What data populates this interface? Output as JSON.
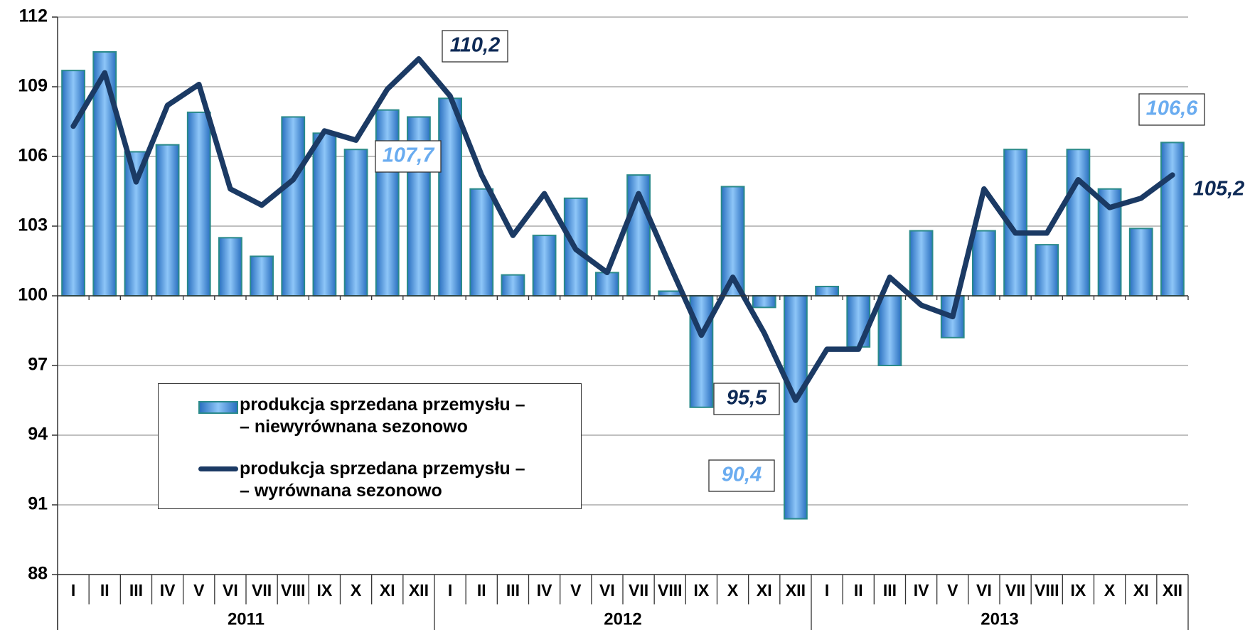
{
  "chart_data": {
    "type": "bar+line",
    "categories": [
      "I",
      "II",
      "III",
      "IV",
      "V",
      "VI",
      "VII",
      "VIII",
      "IX",
      "X",
      "XI",
      "XII",
      "I",
      "II",
      "III",
      "IV",
      "V",
      "VI",
      "VII",
      "VIII",
      "IX",
      "X",
      "XI",
      "XII",
      "I",
      "II",
      "III",
      "IV",
      "V",
      "VI",
      "VII",
      "VIII",
      "IX",
      "X",
      "XI",
      "XII"
    ],
    "groups": [
      "2011",
      "2012",
      "2013"
    ],
    "ylim": [
      88,
      112
    ],
    "yticks": [
      88,
      91,
      94,
      97,
      100,
      103,
      106,
      109,
      112
    ],
    "grid": true,
    "xaxis_crosses": 100,
    "series": [
      {
        "name": "produkcja sprzedana przemysłu –\n– niewyrównana sezonowo",
        "type": "bar",
        "color": "#4a9de8",
        "values": [
          109.7,
          110.5,
          106.2,
          106.5,
          107.9,
          102.5,
          101.7,
          107.7,
          107.0,
          106.3,
          108.0,
          107.7,
          108.5,
          104.6,
          100.9,
          102.6,
          104.2,
          101.0,
          105.2,
          100.2,
          95.2,
          104.7,
          99.5,
          90.4,
          100.4,
          97.8,
          97.0,
          102.8,
          98.2,
          102.8,
          106.3,
          102.2,
          106.3,
          104.6,
          102.9,
          106.6
        ]
      },
      {
        "name": "produkcja sprzedana przemysłu –\n– wyrównana sezonowo",
        "type": "line",
        "color": "#1b3a64",
        "values": [
          107.3,
          109.6,
          104.9,
          108.2,
          109.1,
          104.6,
          103.9,
          105.0,
          107.1,
          106.7,
          108.9,
          110.2,
          108.6,
          105.2,
          102.6,
          104.4,
          102.0,
          101.0,
          104.4,
          101.3,
          98.3,
          100.8,
          98.4,
          95.5,
          97.7,
          97.7,
          100.8,
          99.6,
          99.1,
          104.6,
          102.7,
          102.7,
          105.0,
          103.8,
          104.2,
          105.2
        ]
      }
    ],
    "annotations": [
      {
        "text": "110,2",
        "color": "#0e2a56"
      },
      {
        "text": "107,7",
        "color": "#6aacf0"
      },
      {
        "text": "106,6",
        "color": "#6aacf0"
      },
      {
        "text": "105,2",
        "color": "#0e2a56"
      },
      {
        "text": "95,5",
        "color": "#0e2a56"
      },
      {
        "text": "90,4",
        "color": "#6aacf0"
      }
    ]
  }
}
